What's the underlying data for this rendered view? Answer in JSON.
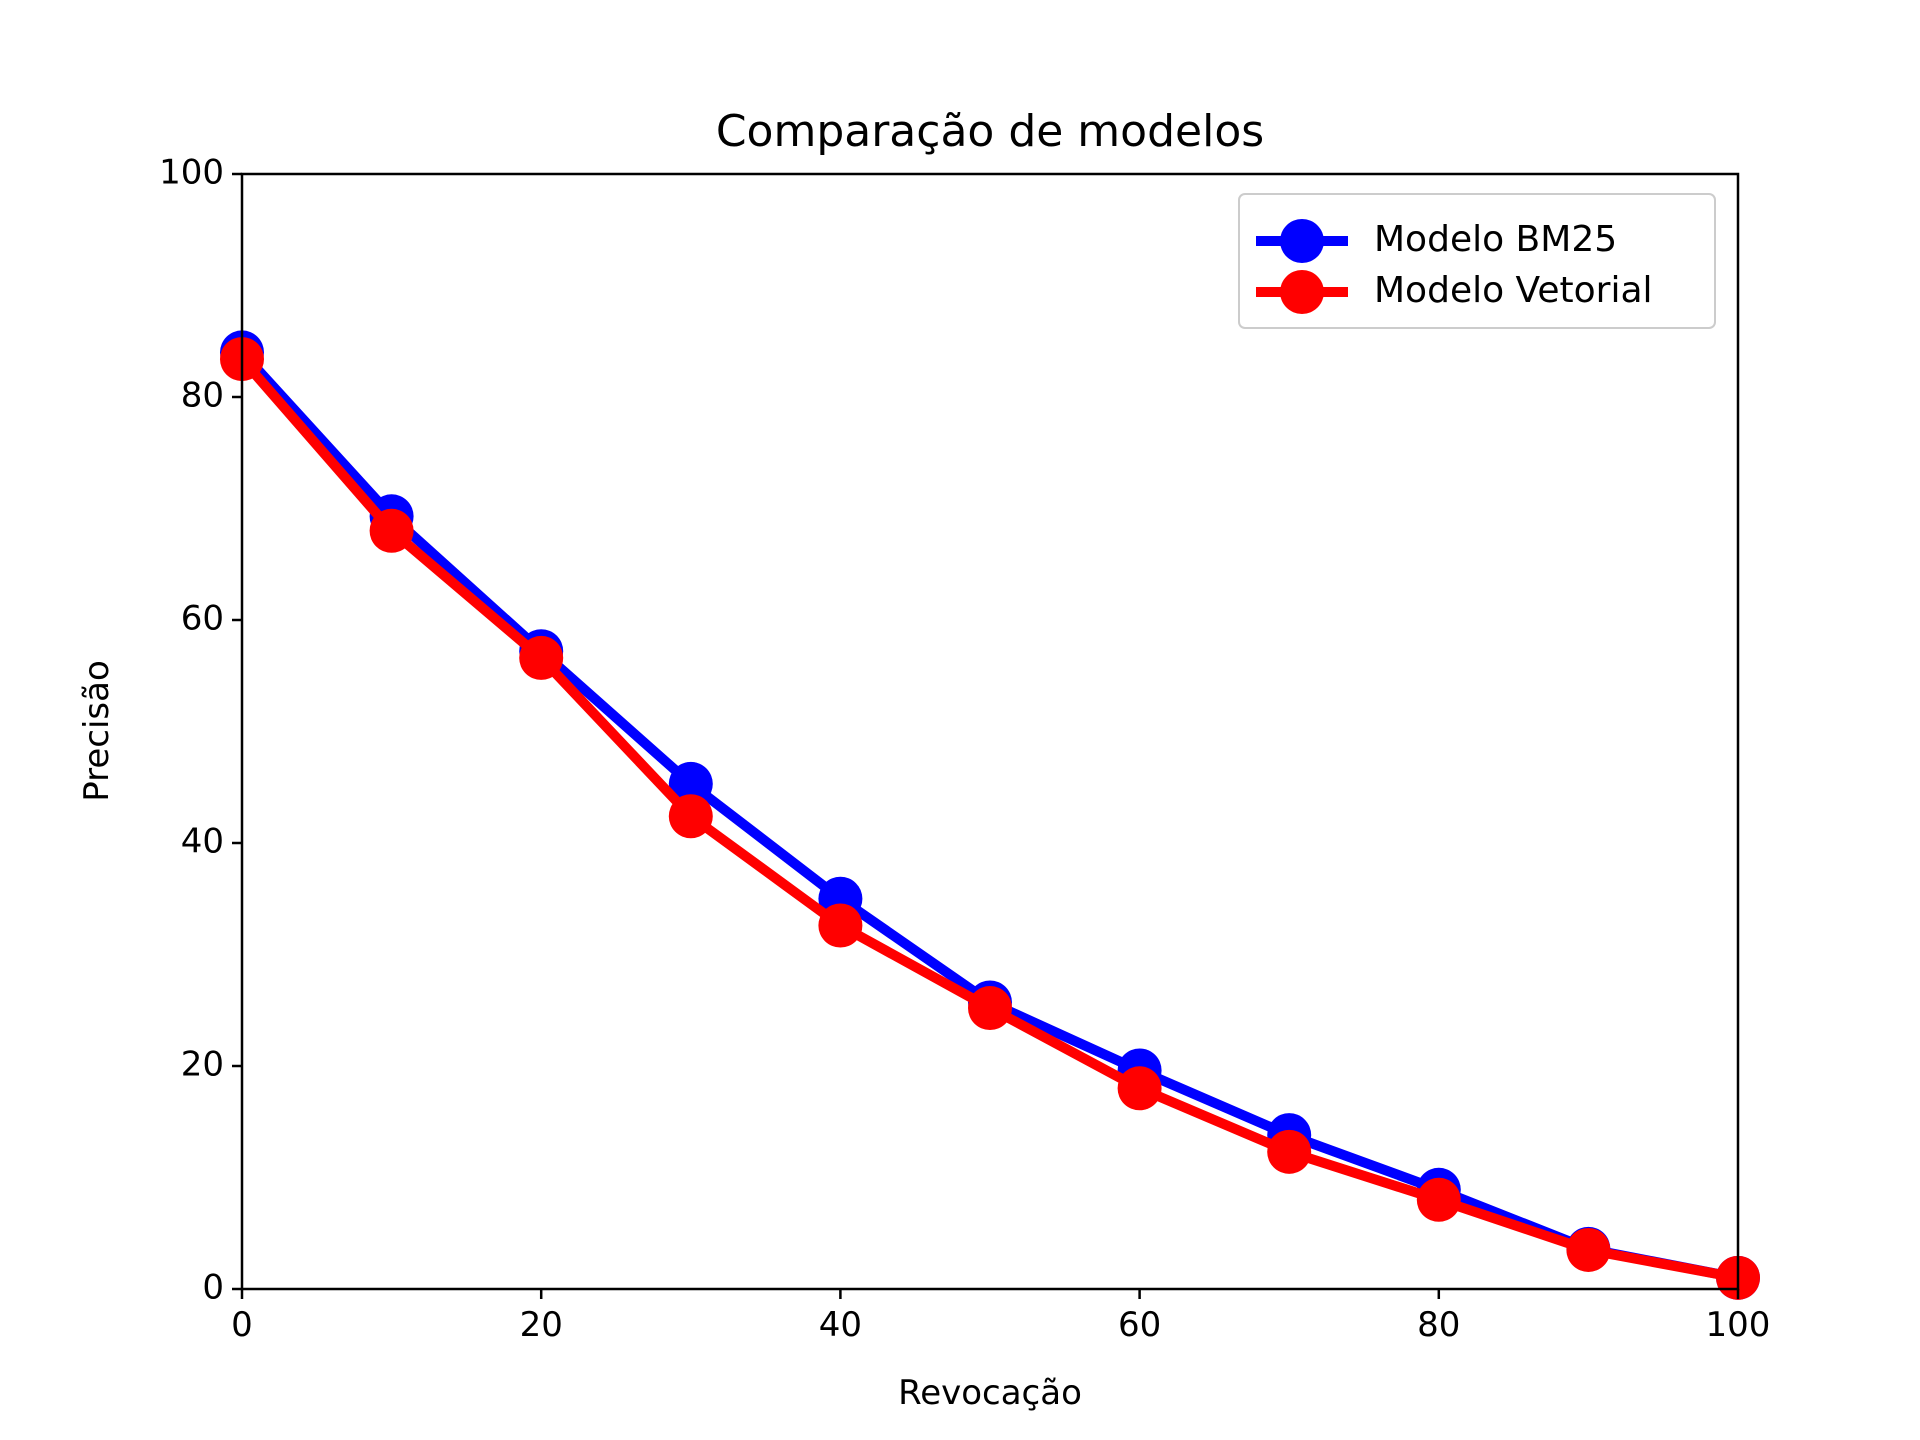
{
  "chart_data": {
    "type": "line",
    "title": "Comparação de modelos",
    "xlabel": "Revocação",
    "ylabel": "Precisão",
    "xlim": [
      0,
      100
    ],
    "ylim": [
      0,
      100
    ],
    "xticks": [
      0,
      20,
      40,
      60,
      80,
      100
    ],
    "yticks": [
      0,
      20,
      40,
      60,
      80,
      100
    ],
    "x": [
      0,
      10,
      20,
      30,
      40,
      50,
      60,
      70,
      80,
      90,
      100
    ],
    "grid": false,
    "legend_position": "top-right",
    "series": [
      {
        "name": "Modelo BM25",
        "color": "#0000ff",
        "values": [
          84,
          69.3,
          57.2,
          45.3,
          35,
          25.7,
          19.6,
          13.8,
          8.9,
          3.6,
          1
        ]
      },
      {
        "name": "Modelo Vetorial",
        "color": "#ff0000",
        "values": [
          83.4,
          68,
          56.6,
          42.4,
          32.6,
          25.2,
          18,
          12.3,
          8,
          3.5,
          1
        ]
      }
    ]
  }
}
